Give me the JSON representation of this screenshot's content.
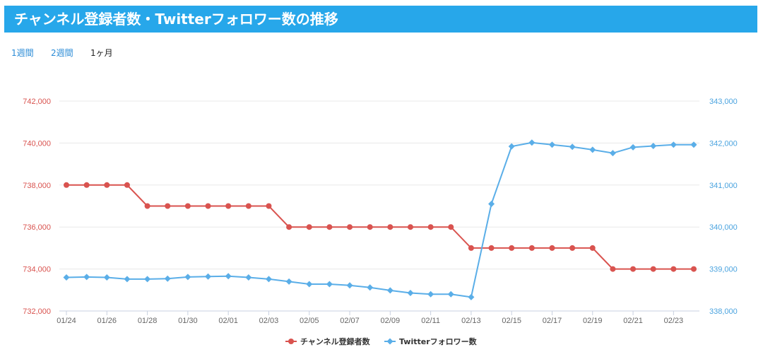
{
  "header": {
    "title": "チャンネル登録者数・Twitterフォロワー数の推移"
  },
  "tabs": [
    {
      "label": "1週間",
      "active": false
    },
    {
      "label": "2週間",
      "active": false
    },
    {
      "label": "1ヶ月",
      "active": true
    }
  ],
  "chart_data": {
    "type": "line",
    "title": "",
    "categories": [
      "01/24",
      "01/25",
      "01/26",
      "01/27",
      "01/28",
      "01/29",
      "01/30",
      "01/31",
      "02/01",
      "02/02",
      "02/03",
      "02/04",
      "02/05",
      "02/06",
      "02/07",
      "02/08",
      "02/09",
      "02/10",
      "02/11",
      "02/12",
      "02/13",
      "02/14",
      "02/15",
      "02/16",
      "02/17",
      "02/18",
      "02/19",
      "02/20",
      "02/21",
      "02/22",
      "02/23",
      "02/24"
    ],
    "x_tick_labels": [
      "01/24",
      "01/26",
      "01/28",
      "01/30",
      "02/01",
      "02/03",
      "02/05",
      "02/07",
      "02/09",
      "02/11",
      "02/13",
      "02/15",
      "02/17",
      "02/19",
      "02/21",
      "02/23"
    ],
    "grid": true,
    "legend_position": "bottom",
    "left_axis": {
      "ylim": [
        732000,
        742000
      ],
      "ticks": [
        "732,000",
        "734,000",
        "736,000",
        "738,000",
        "740,000",
        "742,000"
      ],
      "color": "#d9534f"
    },
    "right_axis": {
      "ylim": [
        338000,
        343000
      ],
      "ticks": [
        "338,000",
        "339,000",
        "340,000",
        "341,000",
        "342,000",
        "343,000"
      ],
      "color": "#4aa3df"
    },
    "series": [
      {
        "name": "チャンネル登録者数",
        "axis": "left",
        "color": "#d9534f",
        "marker": "circle",
        "values": [
          738000,
          738000,
          738000,
          738000,
          737000,
          737000,
          737000,
          737000,
          737000,
          737000,
          737000,
          736000,
          736000,
          736000,
          736000,
          736000,
          736000,
          736000,
          736000,
          736000,
          735000,
          735000,
          735000,
          735000,
          735000,
          735000,
          735000,
          734000,
          734000,
          734000,
          734000,
          734000
        ]
      },
      {
        "name": "Twitterフォロワー数",
        "axis": "right",
        "color": "#5aaee8",
        "marker": "diamond",
        "values": [
          338800,
          338810,
          338800,
          338760,
          338760,
          338770,
          338810,
          338820,
          338830,
          338800,
          338760,
          338700,
          338640,
          338640,
          338610,
          338560,
          338490,
          338430,
          338400,
          338400,
          338330,
          340550,
          341920,
          342010,
          341960,
          341910,
          341840,
          341760,
          341900,
          341930,
          341960,
          341960
        ]
      }
    ]
  }
}
